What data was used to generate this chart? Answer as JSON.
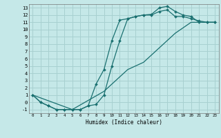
{
  "xlabel": "Humidex (Indice chaleur)",
  "bg_color": "#c5e8e8",
  "grid_color": "#a8d0d0",
  "line_color": "#1a7070",
  "xlim": [
    -0.5,
    23.5
  ],
  "ylim": [
    -1.5,
    13.5
  ],
  "xticks": [
    0,
    1,
    2,
    3,
    4,
    5,
    6,
    7,
    8,
    9,
    10,
    11,
    12,
    13,
    14,
    15,
    16,
    17,
    18,
    19,
    20,
    21,
    22,
    23
  ],
  "yticks": [
    -1,
    0,
    1,
    2,
    3,
    4,
    5,
    6,
    7,
    8,
    9,
    10,
    11,
    12,
    13
  ],
  "line1_x": [
    0,
    1,
    2,
    3,
    4,
    5,
    6,
    7,
    8,
    9,
    10,
    11,
    12,
    13,
    14,
    15,
    16,
    17,
    18,
    19,
    20,
    21,
    22,
    23
  ],
  "line1_y": [
    1.0,
    0.0,
    -0.5,
    -1.0,
    -1.0,
    -1.0,
    -1.0,
    -0.5,
    -0.3,
    1.0,
    5.0,
    8.5,
    11.5,
    11.8,
    12.0,
    12.1,
    13.0,
    13.2,
    12.5,
    12.0,
    11.8,
    11.0,
    11.0,
    11.0
  ],
  "line2_x": [
    0,
    1,
    2,
    3,
    4,
    5,
    6,
    7,
    8,
    9,
    10,
    11,
    12,
    13,
    14,
    15,
    16,
    17,
    18,
    19,
    20,
    21,
    22,
    23
  ],
  "line2_y": [
    1.0,
    0.0,
    -0.5,
    -1.0,
    -1.0,
    -1.0,
    -1.0,
    -0.5,
    2.5,
    4.5,
    8.5,
    11.3,
    11.5,
    11.8,
    12.0,
    12.0,
    12.5,
    12.7,
    11.8,
    11.8,
    11.5,
    11.2,
    11.0,
    11.0
  ],
  "line3_x": [
    0,
    5,
    9,
    12,
    14,
    16,
    18,
    20,
    22,
    23
  ],
  "line3_y": [
    1.0,
    -1.0,
    1.5,
    4.5,
    5.5,
    7.5,
    9.5,
    11.0,
    11.0,
    11.0
  ]
}
